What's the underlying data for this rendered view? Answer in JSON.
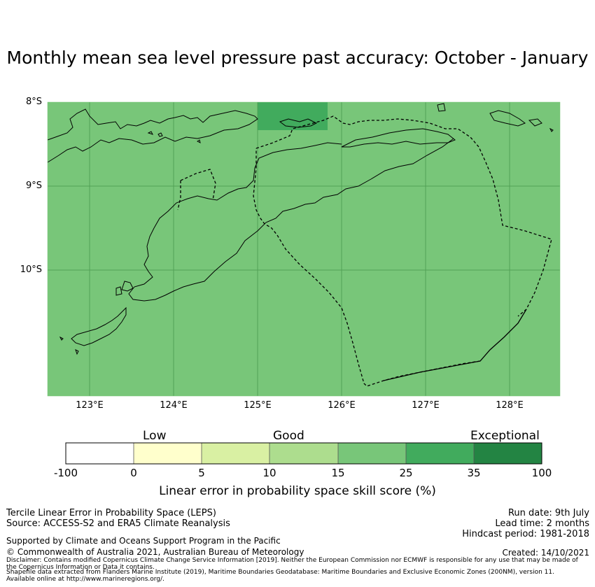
{
  "title": "Monthly mean sea level pressure past accuracy: October - January",
  "map": {
    "lat_labels": [
      "8°S",
      "9°S",
      "10°S"
    ],
    "lon_labels": [
      "123°E",
      "124°E",
      "125°E",
      "126°E",
      "127°E",
      "128°E"
    ],
    "extent": {
      "lon": [
        122.5,
        128.6
      ],
      "lat": [
        -11.5,
        -8.0
      ]
    },
    "base_fill_category": "15 - 25",
    "highlight_cell": {
      "lon": [
        125.0,
        125.83
      ],
      "lat": [
        -8.33,
        -8.0
      ],
      "category": "25 - 35"
    },
    "colors": {
      "base": "#78c679",
      "highlight": "#41ab5d",
      "grid": "#4e9e53"
    }
  },
  "colorbar": {
    "category_labels": [
      "Low",
      "Good",
      "Exceptional"
    ],
    "ticks": [
      "-100",
      "0",
      "5",
      "10",
      "15",
      "25",
      "35",
      "100"
    ],
    "colors": [
      "#ffffff",
      "#ffffcc",
      "#d9f0a3",
      "#addd8e",
      "#78c679",
      "#41ab5d",
      "#238443"
    ],
    "label": "Linear error in probability space skill score (%)"
  },
  "footer": {
    "left_line1": "Tercile Linear Error in Probability Space (LEPS)",
    "left_line2": "Source: ACCESS-S2 and ERA5 Climate Reanalysis",
    "support": "Supported by Climate and Oceans Support Program in the Pacific",
    "copyright": "© Commonwealth of Australia 2021, Australian Bureau of Meteorology",
    "run_date": "Run date: 9th July",
    "lead_time": "Lead time: 2 months",
    "hindcast": "Hindcast period: 1981-2018",
    "created": "Created: 14/10/2021",
    "disclaimer1": "Disclaimer: Contains modified Copernicus Climate Change Service Information [2019]. Neither the European Commission nor ECMWF is responsible for any use that may be made of",
    "disclaimer2": "the Copernicus Information or Data it contains.",
    "shapefile1": "Shapefile data extracted from Flanders Marine Institute (2019), Maritime Boundaries Geodatabase: Maritime Boundaries and Exclusive Economic Zones (200NM), version 11.",
    "shapefile2": "Available online at http://www.marineregions.org/."
  }
}
